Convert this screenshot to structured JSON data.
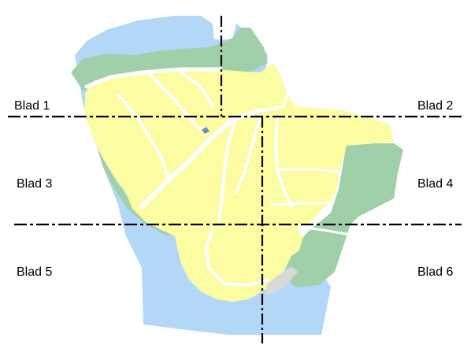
{
  "map": {
    "sheet_labels": [
      "Blad 1",
      "Blad 2",
      "Blad 3",
      "Blad 4",
      "Blad 5",
      "Blad 6"
    ],
    "colors": {
      "water": "#b3d7f7",
      "green": "#9fd0a9",
      "built": "#fcfca3",
      "paved": "#d9d9d9",
      "roads": "#ffffff",
      "divider": "#000000"
    }
  }
}
